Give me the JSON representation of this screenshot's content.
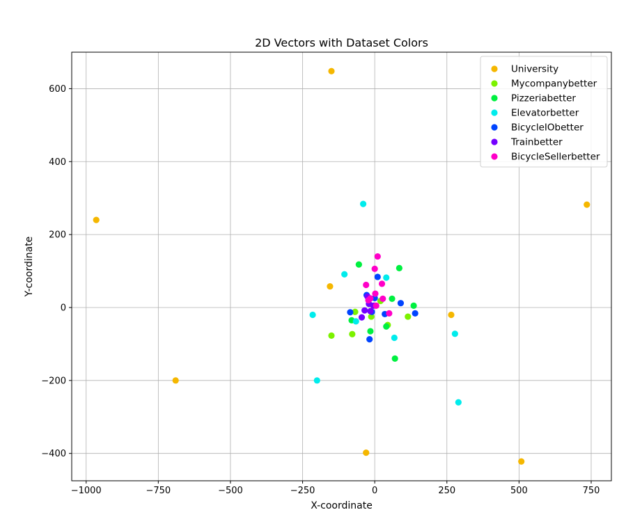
{
  "chart_data": {
    "type": "scatter",
    "title": "2D Vectors with Dataset Colors",
    "xlabel": "X-coordinate",
    "ylabel": "Y-coordinate",
    "xlim": [
      -1050,
      820
    ],
    "ylim": [
      -475,
      700
    ],
    "xticks": [
      -1000,
      -750,
      -500,
      -250,
      0,
      250,
      500,
      750
    ],
    "yticks": [
      -400,
      -200,
      0,
      200,
      400,
      600
    ],
    "grid": true,
    "legend_position": "top-right",
    "series": [
      {
        "name": "University",
        "color": "#f5b700",
        "points": [
          [
            -150,
            648
          ],
          [
            -965,
            240
          ],
          [
            735,
            282
          ],
          [
            -155,
            58
          ],
          [
            265,
            -20
          ],
          [
            -690,
            -200
          ],
          [
            -30,
            -398
          ],
          [
            508,
            -422
          ]
        ]
      },
      {
        "name": "Mycompanybetter",
        "color": "#7cf200",
        "points": [
          [
            -68,
            -12
          ],
          [
            -150,
            -77
          ],
          [
            -78,
            -73
          ],
          [
            115,
            -25
          ],
          [
            45,
            -48
          ],
          [
            -12,
            -25
          ],
          [
            20,
            18
          ]
        ]
      },
      {
        "name": "Pizzeriabetter",
        "color": "#00f040",
        "points": [
          [
            -55,
            118
          ],
          [
            85,
            108
          ],
          [
            60,
            24
          ],
          [
            135,
            5
          ],
          [
            -80,
            -35
          ],
          [
            -15,
            -65
          ],
          [
            40,
            -52
          ],
          [
            70,
            -140
          ]
        ]
      },
      {
        "name": "Elevatorbetter",
        "color": "#00ecec",
        "points": [
          [
            -40,
            284
          ],
          [
            -105,
            91
          ],
          [
            40,
            82
          ],
          [
            -215,
            -20
          ],
          [
            -65,
            -38
          ],
          [
            68,
            -83
          ],
          [
            278,
            -72
          ],
          [
            -200,
            -200
          ],
          [
            290,
            -260
          ]
        ]
      },
      {
        "name": "BicycleIObetter",
        "color": "#0044ff",
        "points": [
          [
            10,
            84
          ],
          [
            -28,
            34
          ],
          [
            -85,
            -13
          ],
          [
            -18,
            -87
          ],
          [
            35,
            -18
          ],
          [
            90,
            12
          ],
          [
            140,
            -16
          ],
          [
            -10,
            -12
          ],
          [
            0,
            26
          ]
        ]
      },
      {
        "name": "Trainbetter",
        "color": "#7400ff",
        "points": [
          [
            -25,
            30
          ],
          [
            -35,
            -8
          ],
          [
            -45,
            -27
          ],
          [
            -5,
            5
          ],
          [
            -15,
            -10
          ],
          [
            -20,
            10
          ]
        ]
      },
      {
        "name": "BicycleSellerbetter",
        "color": "#ff00c8",
        "points": [
          [
            10,
            140
          ],
          [
            0,
            106
          ],
          [
            -30,
            62
          ],
          [
            25,
            65
          ],
          [
            2,
            38
          ],
          [
            -22,
            20
          ],
          [
            28,
            24
          ],
          [
            5,
            5
          ],
          [
            50,
            -16
          ],
          [
            -15,
            25
          ]
        ]
      }
    ]
  }
}
